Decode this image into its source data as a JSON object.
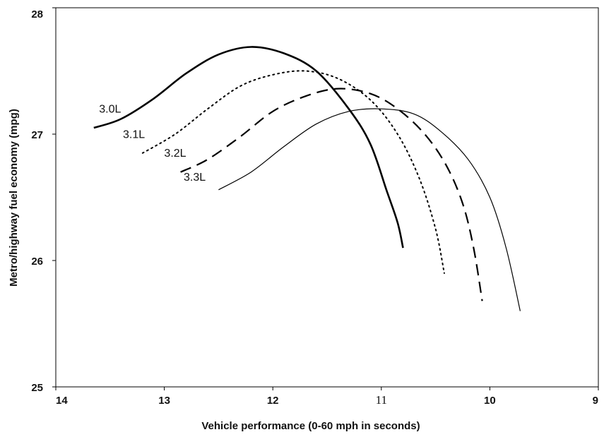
{
  "chart_data": {
    "type": "line",
    "title": "",
    "xlabel": "Vehicle performance (0-60 mph in seconds)",
    "ylabel": "Metro/highway fuel economy (mpg)",
    "xlim": [
      14,
      9
    ],
    "ylim": [
      25,
      28
    ],
    "x_reversed": true,
    "grid": false,
    "legend": "none",
    "x_ticks": [
      {
        "value": 14,
        "label": "14"
      },
      {
        "value": 13,
        "label": "13"
      },
      {
        "value": 12,
        "label": "12"
      },
      {
        "value": 11,
        "label": "11"
      },
      {
        "value": 10,
        "label": "10"
      },
      {
        "value": 9,
        "label": "9"
      }
    ],
    "y_ticks": [
      {
        "value": 25,
        "label": "25"
      },
      {
        "value": 26,
        "label": "26"
      },
      {
        "value": 27,
        "label": "27"
      },
      {
        "value": 28,
        "label": "28"
      }
    ],
    "series": [
      {
        "name": "3.0L",
        "style": "solid-thick",
        "color": "#000000",
        "label_anchor": [
          13.5,
          27.17
        ],
        "points": [
          [
            13.65,
            27.05
          ],
          [
            13.4,
            27.12
          ],
          [
            13.1,
            27.28
          ],
          [
            12.8,
            27.48
          ],
          [
            12.5,
            27.63
          ],
          [
            12.2,
            27.69
          ],
          [
            11.9,
            27.64
          ],
          [
            11.6,
            27.5
          ],
          [
            11.3,
            27.2
          ],
          [
            11.1,
            26.92
          ],
          [
            10.95,
            26.55
          ],
          [
            10.85,
            26.3
          ],
          [
            10.8,
            26.1
          ]
        ]
      },
      {
        "name": "3.1L",
        "style": "dotted",
        "color": "#000000",
        "label_anchor": [
          13.28,
          26.97
        ],
        "points": [
          [
            13.2,
            26.85
          ],
          [
            12.9,
            27.0
          ],
          [
            12.6,
            27.2
          ],
          [
            12.3,
            27.38
          ],
          [
            12.0,
            27.47
          ],
          [
            11.7,
            27.5
          ],
          [
            11.4,
            27.44
          ],
          [
            11.1,
            27.27
          ],
          [
            10.85,
            27.0
          ],
          [
            10.65,
            26.65
          ],
          [
            10.5,
            26.25
          ],
          [
            10.42,
            25.9
          ]
        ]
      },
      {
        "name": "3.2L",
        "style": "dashed",
        "color": "#000000",
        "label_anchor": [
          12.9,
          26.82
        ],
        "points": [
          [
            12.85,
            26.7
          ],
          [
            12.6,
            26.8
          ],
          [
            12.3,
            26.98
          ],
          [
            12.0,
            27.18
          ],
          [
            11.7,
            27.3
          ],
          [
            11.4,
            27.36
          ],
          [
            11.1,
            27.32
          ],
          [
            10.85,
            27.2
          ],
          [
            10.6,
            27.0
          ],
          [
            10.4,
            26.75
          ],
          [
            10.25,
            26.45
          ],
          [
            10.15,
            26.1
          ],
          [
            10.07,
            25.68
          ]
        ]
      },
      {
        "name": "3.3L",
        "style": "solid-thin",
        "color": "#000000",
        "label_anchor": [
          12.72,
          26.63
        ],
        "points": [
          [
            12.5,
            26.56
          ],
          [
            12.2,
            26.7
          ],
          [
            11.9,
            26.9
          ],
          [
            11.6,
            27.08
          ],
          [
            11.3,
            27.18
          ],
          [
            11.0,
            27.2
          ],
          [
            10.7,
            27.16
          ],
          [
            10.45,
            27.02
          ],
          [
            10.2,
            26.8
          ],
          [
            10.0,
            26.5
          ],
          [
            9.85,
            26.1
          ],
          [
            9.72,
            25.6
          ]
        ]
      }
    ]
  }
}
